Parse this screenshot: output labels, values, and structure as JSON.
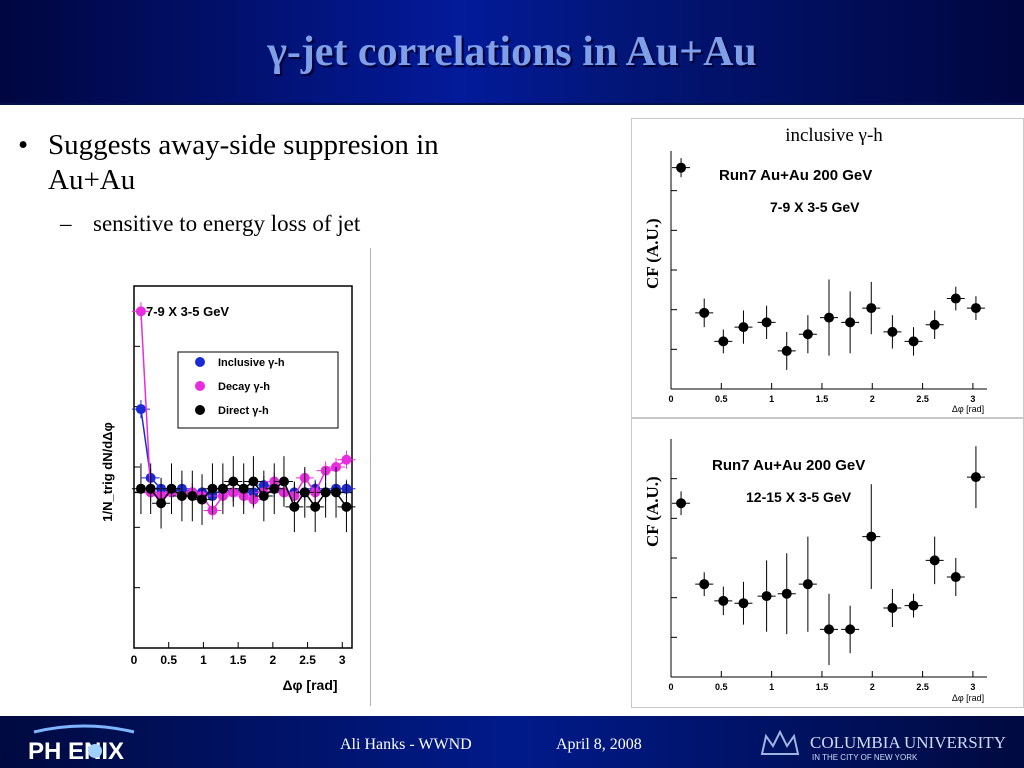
{
  "slide": {
    "title": "γ-jet correlations in Au+Au",
    "bullet_main": "Suggests away-side suppresion in Au+Au",
    "bullet_sub": "sensitive to energy loss of jet",
    "bullet_glyph": "•",
    "sub_glyph": "–"
  },
  "footer": {
    "logo_text": "PH  ENIX",
    "author": "Ali Hanks - WWND",
    "date": "April 8, 2008",
    "university": "COLUMBIA UNIVERSITY",
    "university_sub": "IN THE CITY OF NEW YORK"
  },
  "colors": {
    "title": "#7f9fe8",
    "inclusive": "#1a2bd6",
    "decay": "#e82ce0",
    "direct": "#000000"
  },
  "chart_data": [
    {
      "type": "scatter",
      "title": "7-9 X 3-5 GeV",
      "xlabel": "Δφ [rad]",
      "ylabel": "1/N_trig dN/dΔφ",
      "xlim": [
        0,
        3.14
      ],
      "ylim": [
        0,
        1
      ],
      "x_ticks": [
        "0",
        "0.5",
        "1",
        "1.5",
        "2",
        "2.5",
        "3"
      ],
      "legend_position": "top-right",
      "series": [
        {
          "name": "Inclusive γ-h",
          "x": [
            0.1,
            0.24,
            0.39,
            0.54,
            0.69,
            0.84,
            0.98,
            1.13,
            1.28,
            1.43,
            1.58,
            1.72,
            1.87,
            2.02,
            2.16,
            2.31,
            2.46,
            2.61,
            2.76,
            2.91,
            3.06
          ],
          "y": [
            0.66,
            0.47,
            0.44,
            0.43,
            0.44,
            0.43,
            0.43,
            0.42,
            0.44,
            0.43,
            0.44,
            0.43,
            0.45,
            0.44,
            0.43,
            0.43,
            0.43,
            0.44,
            0.43,
            0.44,
            0.44
          ]
        },
        {
          "name": "Decay γ-h",
          "x": [
            0.1,
            0.24,
            0.39,
            0.54,
            0.69,
            0.84,
            0.98,
            1.13,
            1.28,
            1.43,
            1.58,
            1.72,
            1.87,
            2.02,
            2.16,
            2.31,
            2.46,
            2.61,
            2.76,
            2.91,
            3.06
          ],
          "y": [
            0.93,
            0.43,
            0.42,
            0.43,
            0.42,
            0.43,
            0.42,
            0.38,
            0.42,
            0.43,
            0.42,
            0.41,
            0.43,
            0.46,
            0.43,
            0.42,
            0.47,
            0.43,
            0.49,
            0.5,
            0.52
          ]
        },
        {
          "name": "Direct γ-h",
          "x": [
            0.1,
            0.24,
            0.39,
            0.54,
            0.69,
            0.84,
            0.98,
            1.13,
            1.28,
            1.43,
            1.58,
            1.72,
            1.87,
            2.02,
            2.16,
            2.31,
            2.46,
            2.61,
            2.76,
            2.91,
            3.06
          ],
          "y": [
            0.44,
            0.44,
            0.4,
            0.44,
            0.42,
            0.42,
            0.41,
            0.44,
            0.44,
            0.46,
            0.44,
            0.46,
            0.42,
            0.44,
            0.46,
            0.39,
            0.43,
            0.39,
            0.43,
            0.43,
            0.39
          ]
        }
      ]
    },
    {
      "type": "scatter",
      "title": "inclusive γ-h",
      "annotation1": "Run7 Au+Au 200 GeV",
      "annotation2": "7-9 X 3-5 GeV",
      "xlabel": "Δφ [rad]",
      "ylabel": "CF (A.U.)",
      "xlim": [
        0,
        3.14
      ],
      "ylim": [
        0,
        1
      ],
      "x_ticks": [
        "0",
        "0.5",
        "1",
        "1.5",
        "2",
        "2.5",
        "3"
      ],
      "series": [
        {
          "x": [
            0.1,
            0.33,
            0.52,
            0.72,
            0.95,
            1.15,
            1.36,
            1.57,
            1.78,
            1.99,
            2.2,
            2.41,
            2.62,
            2.83,
            3.03
          ],
          "y": [
            0.93,
            0.32,
            0.2,
            0.26,
            0.28,
            0.16,
            0.23,
            0.3,
            0.28,
            0.34,
            0.24,
            0.2,
            0.27,
            0.38,
            0.34
          ],
          "err": [
            0.04,
            0.06,
            0.05,
            0.07,
            0.07,
            0.08,
            0.08,
            0.16,
            0.13,
            0.11,
            0.07,
            0.06,
            0.06,
            0.05,
            0.05
          ]
        }
      ]
    },
    {
      "type": "scatter",
      "annotation1": "Run7 Au+Au 200 GeV",
      "annotation2": "12-15 X 3-5 GeV",
      "xlabel": "Δφ [rad]",
      "ylabel": "CF (A.U.)",
      "xlim": [
        0,
        3.14
      ],
      "ylim": [
        0,
        1
      ],
      "x_ticks": [
        "0",
        "0.5",
        "1",
        "1.5",
        "2",
        "2.5",
        "3"
      ],
      "series": [
        {
          "x": [
            0.1,
            0.33,
            0.52,
            0.72,
            0.95,
            1.15,
            1.36,
            1.57,
            1.78,
            1.99,
            2.2,
            2.41,
            2.62,
            2.83,
            3.03
          ],
          "y": [
            0.73,
            0.39,
            0.32,
            0.31,
            0.34,
            0.35,
            0.39,
            0.2,
            0.2,
            0.59,
            0.29,
            0.3,
            0.49,
            0.42,
            0.84
          ],
          "err": [
            0.05,
            0.05,
            0.06,
            0.09,
            0.15,
            0.17,
            0.2,
            0.15,
            0.1,
            0.22,
            0.08,
            0.05,
            0.1,
            0.08,
            0.13
          ]
        }
      ]
    }
  ]
}
